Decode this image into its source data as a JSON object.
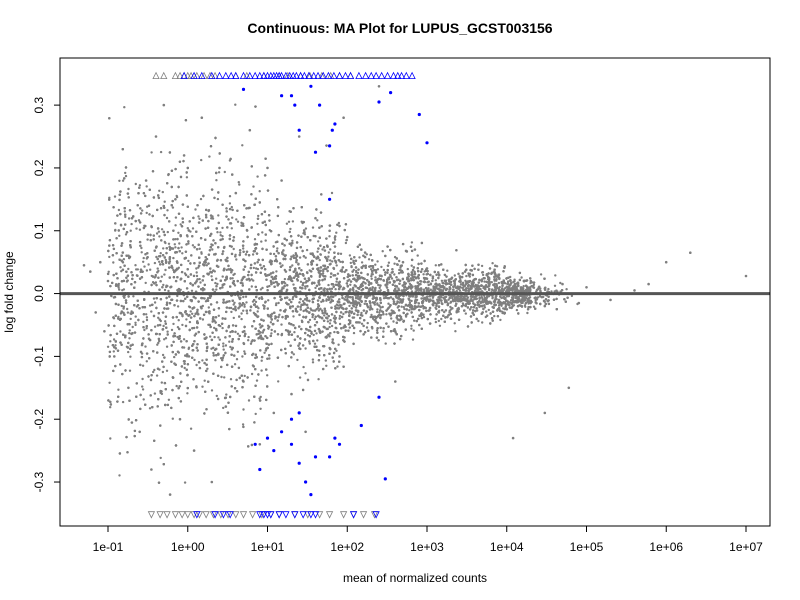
{
  "chart_data": {
    "type": "scatter",
    "title": "Continuous: MA Plot for LUPUS_GCST003156",
    "xlabel": "mean of normalized counts",
    "ylabel": "log fold change",
    "x_scale": "log10",
    "xlim": [
      0.025,
      20000000
    ],
    "ylim": [
      -0.37,
      0.375
    ],
    "x_ticks": [
      {
        "value": 0.1,
        "label": "1e-01"
      },
      {
        "value": 1,
        "label": "1e+00"
      },
      {
        "value": 10,
        "label": "1e+01"
      },
      {
        "value": 100,
        "label": "1e+02"
      },
      {
        "value": 1000,
        "label": "1e+03"
      },
      {
        "value": 10000,
        "label": "1e+04"
      },
      {
        "value": 100000,
        "label": "1e+05"
      },
      {
        "value": 1000000,
        "label": "1e+06"
      },
      {
        "value": 10000000,
        "label": "1e+07"
      }
    ],
    "y_ticks": [
      {
        "value": -0.3,
        "label": "-0.3"
      },
      {
        "value": -0.2,
        "label": "-0.2"
      },
      {
        "value": -0.1,
        "label": "-0.1"
      },
      {
        "value": 0.0,
        "label": "0.0"
      },
      {
        "value": 0.1,
        "label": "0.1"
      },
      {
        "value": 0.2,
        "label": "0.2"
      },
      {
        "value": 0.3,
        "label": "0.3"
      }
    ],
    "hline_y": 0,
    "colors": {
      "nonsignificant": "#7f7f7f",
      "significant": "#0000ff",
      "reference_line": "#555555"
    },
    "series": [
      {
        "color": "#7f7f7f",
        "points": [
          [
            0.05,
            0.045
          ],
          [
            0.06,
            0.035
          ],
          [
            0.07,
            -0.03
          ],
          [
            0.08,
            0.05
          ],
          [
            0.09,
            -0.06
          ],
          [
            0.1,
            0.02
          ],
          [
            0.12,
            -0.1
          ],
          [
            0.15,
            0.08
          ],
          [
            0.18,
            -0.15
          ],
          [
            0.2,
            0.12
          ],
          [
            0.25,
            -0.22
          ],
          [
            0.3,
            0.18
          ],
          [
            0.35,
            -0.28
          ],
          [
            0.4,
            0.25
          ],
          [
            0.45,
            -0.05
          ],
          [
            0.5,
            0.3
          ],
          [
            0.6,
            -0.32
          ],
          [
            0.7,
            0.15
          ],
          [
            0.8,
            -0.2
          ],
          [
            0.9,
            0.22
          ],
          [
            1.2,
            -0.25
          ],
          [
            1.5,
            0.28
          ],
          [
            2,
            -0.3
          ],
          [
            2.5,
            0.2
          ],
          [
            3,
            -0.18
          ],
          [
            4,
            0.16
          ],
          [
            5,
            -0.14
          ],
          [
            6,
            0.26
          ],
          [
            8,
            -0.24
          ],
          [
            10,
            0.2
          ],
          [
            12,
            -0.19
          ],
          [
            15,
            0.18
          ],
          [
            20,
            -0.16
          ],
          [
            25,
            0.25
          ],
          [
            30,
            -0.22
          ],
          [
            40,
            0.12
          ],
          [
            50,
            -0.12
          ],
          [
            60,
            0.1
          ],
          [
            80,
            -0.1
          ],
          [
            100,
            0.09
          ],
          [
            120,
            -0.08
          ],
          [
            150,
            0.07
          ],
          [
            200,
            -0.07
          ],
          [
            300,
            0.06
          ],
          [
            400,
            -0.06
          ],
          [
            500,
            0.05
          ],
          [
            800,
            -0.05
          ],
          [
            1000,
            0.04
          ],
          [
            2000,
            -0.04
          ],
          [
            3000,
            0.035
          ],
          [
            5000,
            -0.03
          ],
          [
            8000,
            0.03
          ],
          [
            10000,
            -0.025
          ],
          [
            20000,
            0.02
          ],
          [
            30000,
            -0.02
          ],
          [
            50000,
            0.015
          ],
          [
            80000,
            -0.015
          ],
          [
            100000,
            0.01
          ],
          [
            200000,
            -0.01
          ],
          [
            400000,
            0.005
          ],
          [
            600000,
            0.015
          ],
          [
            1000000,
            0.05
          ],
          [
            2000000,
            0.065
          ],
          [
            10000000,
            0.028
          ],
          [
            30000,
            -0.19
          ],
          [
            60000,
            -0.15
          ],
          [
            12000,
            -0.23
          ],
          [
            250,
            0.33
          ],
          [
            90,
            0.28
          ],
          [
            400,
            -0.14
          ]
        ]
      },
      {
        "color": "#0000ff",
        "points": [
          [
            5,
            0.325
          ],
          [
            15,
            0.315
          ],
          [
            20,
            0.315
          ],
          [
            22,
            0.3
          ],
          [
            25,
            0.26
          ],
          [
            35,
            0.33
          ],
          [
            40,
            0.225
          ],
          [
            45,
            0.3
          ],
          [
            60,
            0.235
          ],
          [
            65,
            0.26
          ],
          [
            70,
            0.27
          ],
          [
            250,
            0.305
          ],
          [
            350,
            0.32
          ],
          [
            800,
            0.285
          ],
          [
            1000,
            0.24
          ],
          [
            60,
            0.15
          ],
          [
            7,
            -0.24
          ],
          [
            8,
            -0.28
          ],
          [
            10,
            -0.23
          ],
          [
            12,
            -0.25
          ],
          [
            15,
            -0.22
          ],
          [
            20,
            -0.24
          ],
          [
            25,
            -0.27
          ],
          [
            30,
            -0.3
          ],
          [
            35,
            -0.32
          ],
          [
            40,
            -0.26
          ],
          [
            60,
            -0.26
          ],
          [
            80,
            -0.24
          ],
          [
            150,
            -0.21
          ],
          [
            250,
            -0.165
          ],
          [
            300,
            -0.295
          ],
          [
            20,
            -0.2
          ],
          [
            25,
            -0.19
          ],
          [
            70,
            -0.23
          ]
        ]
      }
    ],
    "clipped_top": {
      "y": 0.347,
      "gray_x": [
        0.4,
        0.5,
        0.7,
        0.8,
        0.9,
        1.0,
        1.1,
        1.3,
        1.6,
        1.9,
        2.2,
        4,
        5.5,
        9,
        14,
        18,
        26,
        34,
        48,
        62,
        80,
        110
      ],
      "blue_x": [
        0.9,
        1.2,
        1.5,
        2,
        2.5,
        3,
        3.5,
        4,
        5,
        6,
        7,
        8,
        9,
        10,
        11,
        12,
        13,
        14,
        15,
        17,
        19,
        21,
        23,
        26,
        29,
        33,
        38,
        43,
        50,
        58,
        68,
        80,
        95,
        110,
        140,
        170,
        200,
        230,
        270,
        320,
        380,
        430,
        480,
        550,
        650
      ]
    },
    "clipped_bottom": {
      "y": -0.352,
      "gray_x": [
        0.35,
        0.45,
        0.55,
        0.7,
        0.85,
        1.0,
        1.2,
        1.4,
        1.7,
        2.1,
        2.6,
        3.2,
        4,
        5,
        6.5,
        8.5,
        11,
        14,
        22,
        32,
        45,
        60,
        90,
        120,
        160,
        220
      ],
      "blue_x": [
        1.3,
        2.2,
        2.8,
        3.4,
        8,
        9,
        10,
        11,
        14,
        17,
        22,
        28,
        35,
        40,
        120,
        230
      ]
    }
  }
}
